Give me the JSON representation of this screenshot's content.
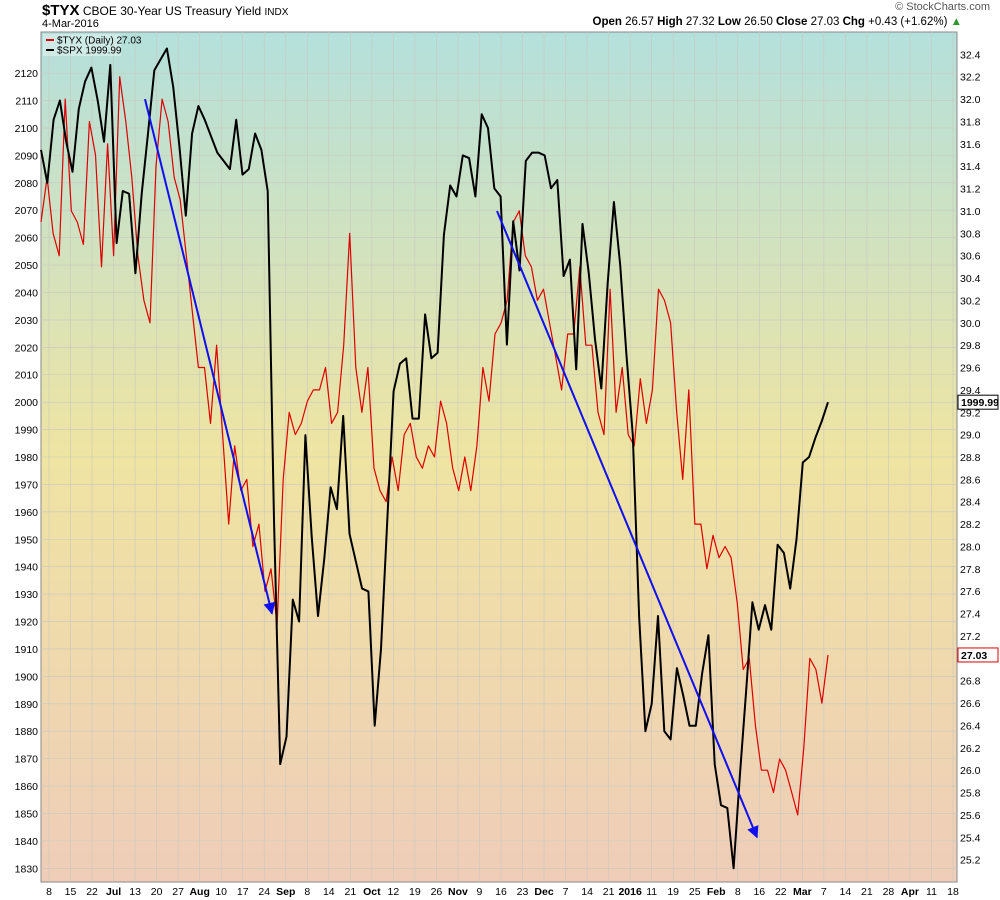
{
  "header": {
    "symbol": "$TYX",
    "description": "CBOE 30-Year US Treasury Yield",
    "exchange": "INDX",
    "date": "4-Mar-2016",
    "logo": "© StockCharts.com",
    "ohlc": {
      "open_label": "Open",
      "open": "26.57",
      "high_label": "High",
      "high": "27.32",
      "low_label": "Low",
      "low": "26.50",
      "close_label": "Close",
      "close": "27.03",
      "chg_label": "Chg",
      "chg": "+0.43 (+1.62%)"
    }
  },
  "legend": [
    {
      "label": "$TYX (Daily) 27.03",
      "color": "#dd0000"
    },
    {
      "label": "$SPX 1999.99",
      "color": "#000000"
    }
  ],
  "chart_data": {
    "type": "line",
    "title": "CBOE 30-Year US Treasury Yield",
    "x_ticks": [
      {
        "label": "8"
      },
      {
        "label": "15"
      },
      {
        "label": "22"
      },
      {
        "label": "Jul",
        "bold": true
      },
      {
        "label": "13"
      },
      {
        "label": "20"
      },
      {
        "label": "27"
      },
      {
        "label": "Aug",
        "bold": true
      },
      {
        "label": "10"
      },
      {
        "label": "17"
      },
      {
        "label": "24"
      },
      {
        "label": "Sep",
        "bold": true
      },
      {
        "label": "8"
      },
      {
        "label": "14"
      },
      {
        "label": "21"
      },
      {
        "label": "Oct",
        "bold": true
      },
      {
        "label": "12"
      },
      {
        "label": "19"
      },
      {
        "label": "26"
      },
      {
        "label": "Nov",
        "bold": true
      },
      {
        "label": "9"
      },
      {
        "label": "16"
      },
      {
        "label": "23"
      },
      {
        "label": "Dec",
        "bold": true
      },
      {
        "label": "7"
      },
      {
        "label": "14"
      },
      {
        "label": "21"
      },
      {
        "label": "2016",
        "bold": true
      },
      {
        "label": "11"
      },
      {
        "label": "19"
      },
      {
        "label": "25"
      },
      {
        "label": "Feb",
        "bold": true
      },
      {
        "label": "8"
      },
      {
        "label": "16"
      },
      {
        "label": "22"
      },
      {
        "label": "Mar",
        "bold": true
      },
      {
        "label": "7"
      },
      {
        "label": "14"
      },
      {
        "label": "21"
      },
      {
        "label": "28"
      },
      {
        "label": "Apr",
        "bold": true
      },
      {
        "label": "11"
      },
      {
        "label": "18"
      }
    ],
    "left_axis": {
      "series": "$SPX",
      "ylim": [
        1825,
        2135
      ],
      "ticks": [
        1830,
        1840,
        1850,
        1860,
        1870,
        1880,
        1890,
        1900,
        1910,
        1920,
        1930,
        1940,
        1950,
        1960,
        1970,
        1980,
        1990,
        2000,
        2010,
        2020,
        2030,
        2040,
        2050,
        2060,
        2070,
        2080,
        2090,
        2100,
        2110,
        2120
      ]
    },
    "right_axis": {
      "series": "$TYX",
      "ylim": [
        25.0,
        32.6
      ],
      "ticks": [
        "25.2",
        "25.4",
        "25.6",
        "25.8",
        "26.0",
        "26.2",
        "26.4",
        "26.6",
        "26.8",
        "27.0",
        "27.2",
        "27.4",
        "27.6",
        "27.8",
        "28.0",
        "28.2",
        "28.4",
        "28.6",
        "28.8",
        "29.0",
        "29.2",
        "29.4",
        "29.6",
        "29.8",
        "30.0",
        "30.2",
        "30.4",
        "30.6",
        "30.8",
        "31.0",
        "31.2",
        "31.4",
        "31.6",
        "31.8",
        "32.0",
        "32.2",
        "32.4"
      ],
      "last_value_tags": [
        {
          "value": "1999.99",
          "axis": "left"
        },
        {
          "value": "27.03",
          "axis": "right"
        }
      ]
    },
    "grid": true,
    "series": [
      {
        "name": "$TYX (Daily)",
        "axis": "right",
        "color": "#dd0000",
        "values": [
          30.9,
          31.3,
          30.8,
          30.6,
          32.0,
          31.0,
          30.9,
          30.7,
          31.8,
          31.5,
          30.5,
          31.6,
          30.6,
          32.2,
          31.8,
          31.3,
          30.6,
          30.2,
          30.0,
          31.4,
          32.0,
          31.8,
          31.3,
          31.1,
          30.6,
          30.1,
          29.6,
          29.6,
          29.1,
          29.8,
          29.0,
          28.2,
          28.9,
          28.5,
          28.6,
          28.0,
          28.2,
          27.6,
          27.8,
          27.3,
          28.6,
          29.2,
          29.0,
          29.1,
          29.3,
          29.4,
          29.4,
          29.6,
          29.1,
          29.2,
          29.8,
          30.8,
          29.6,
          29.2,
          29.6,
          28.7,
          28.5,
          28.4,
          28.8,
          28.5,
          29.0,
          29.1,
          28.8,
          28.7,
          28.9,
          28.8,
          29.3,
          29.1,
          28.7,
          28.5,
          28.8,
          28.5,
          28.9,
          29.6,
          29.3,
          29.9,
          30.0,
          30.2,
          30.9,
          31.0,
          30.6,
          30.5,
          30.2,
          30.3,
          30.0,
          29.7,
          29.4,
          29.9,
          29.9,
          30.5,
          29.8,
          29.8,
          29.2,
          29.0,
          30.3,
          29.2,
          29.6,
          29.0,
          28.9,
          29.5,
          29.1,
          29.4,
          30.3,
          30.2,
          30.0,
          29.2,
          28.6,
          29.4,
          28.2,
          28.2,
          27.8,
          28.1,
          27.9,
          28.0,
          27.9,
          27.5,
          26.9,
          27.0,
          26.4,
          26.0,
          26.0,
          25.8,
          26.1,
          26.0,
          25.8,
          25.6,
          26.2,
          27.0,
          26.9,
          26.6,
          27.03
        ]
      },
      {
        "name": "$SPX",
        "axis": "left",
        "color": "#000000",
        "values": [
          2092,
          2080,
          2103,
          2110,
          2095,
          2084,
          2107,
          2117,
          2122,
          2110,
          2095,
          2123,
          2058,
          2077,
          2076,
          2047,
          2076,
          2098,
          2121,
          2125,
          2129,
          2115,
          2093,
          2068,
          2098,
          2108,
          2103,
          2097,
          2091,
          2088,
          2085,
          2103,
          2083,
          2085,
          2098,
          2092,
          2077,
          1957,
          1868,
          1878,
          1928,
          1920,
          1988,
          1951,
          1922,
          1943,
          1969,
          1961,
          1995,
          1952,
          1942,
          1932,
          1931,
          1882,
          1910,
          1957,
          2004,
          2014,
          2016,
          1994,
          1994,
          2032,
          2016,
          2018,
          2061,
          2079,
          2075,
          2090,
          2089,
          2075,
          2105,
          2100,
          2078,
          2075,
          2021,
          2066,
          2048,
          2088,
          2091,
          2091,
          2090,
          2078,
          2081,
          2046,
          2052,
          2012,
          2065,
          2047,
          2023,
          2005,
          2043,
          2073,
          2050,
          2017,
          1988,
          1922,
          1880,
          1890,
          1922,
          1880,
          1877,
          1903,
          1893,
          1882,
          1882,
          1901,
          1915,
          1868,
          1853,
          1852,
          1830,
          1864,
          1895,
          1927,
          1917,
          1926,
          1917,
          1948,
          1945,
          1932,
          1950,
          1978,
          1980,
          1987,
          1993,
          1999.99
        ]
      }
    ],
    "annotations": [
      {
        "type": "arrow",
        "color": "#1010ee",
        "from": {
          "x": "Jul 2015",
          "y_right": 32.0
        },
        "to": {
          "x": "Aug 24 2015",
          "y_right": 27.4
        }
      },
      {
        "type": "arrow",
        "color": "#1010ee",
        "from": {
          "x": "Nov 9 2015",
          "y_right": 31.0
        },
        "to": {
          "x": "Feb 11 2016",
          "y_right": 25.4
        }
      }
    ]
  }
}
